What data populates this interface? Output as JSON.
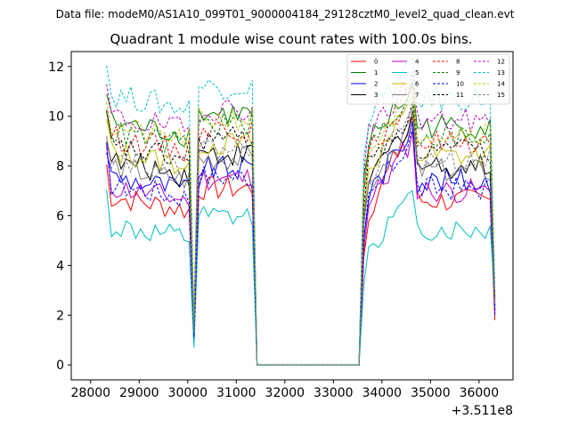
{
  "figure": {
    "suptitle": "Data file: modeM0/AS1A10_099T01_9000004184_29128cztM0_level2_quad_clean.evt"
  },
  "chart_data": {
    "type": "line",
    "title": "Quadrant 1 module wise count rates with 100.0s bins.",
    "xlabel": "",
    "ylabel": "",
    "x_offset_label": "+3.511e8",
    "xlim": [
      27600,
      36700
    ],
    "ylim": [
      -0.6,
      12.6
    ],
    "x_ticks": [
      28000,
      29000,
      30000,
      31000,
      32000,
      33000,
      34000,
      35000,
      36000
    ],
    "x_tick_labels": [
      "28000",
      "29000",
      "30000",
      "31000",
      "32000",
      "33000",
      "34000",
      "35000",
      "36000"
    ],
    "y_ticks": [
      0,
      2,
      4,
      6,
      8,
      10,
      12
    ],
    "y_tick_labels": [
      "0",
      "2",
      "4",
      "6",
      "8",
      "10",
      "12"
    ],
    "grid": false,
    "legend_position": "top-right",
    "x": [
      28328,
      28428,
      28528,
      28628,
      28728,
      28828,
      28928,
      29028,
      29128,
      29228,
      29328,
      29428,
      29528,
      29628,
      29728,
      29828,
      29928,
      30028,
      30128,
      30228,
      30328,
      30428,
      30528,
      30628,
      30728,
      30828,
      30928,
      31028,
      31128,
      31228,
      31328,
      31428,
      31528,
      31628,
      31728,
      31828,
      31928,
      32028,
      32128,
      32228,
      32328,
      32428,
      32528,
      32628,
      32728,
      32828,
      32928,
      33028,
      33128,
      33228,
      33328,
      33428,
      33528,
      33628,
      33728,
      33828,
      33928,
      34028,
      34128,
      34228,
      34328,
      34428,
      34528,
      34628,
      34728,
      34828,
      34928,
      35028,
      35128,
      35228,
      35328,
      35428,
      35528,
      35628,
      35728,
      35828,
      35928,
      36028,
      36128,
      36228,
      36328
    ],
    "legend_labels": [
      "0",
      "1",
      "2",
      "3",
      "4",
      "5",
      "6",
      "7",
      "8",
      "9",
      "10",
      "11",
      "12",
      "13",
      "14",
      "15"
    ],
    "series": [
      {
        "name": "0",
        "color": "#ff0000",
        "dash": "solid",
        "level": 6.8,
        "gap_dip": 1.2,
        "end_level": 1.8,
        "peak": 9.6
      },
      {
        "name": "1",
        "color": "#008000",
        "dash": "solid",
        "level": 9.8,
        "gap_dip": 1.6,
        "end_level": 2.2,
        "peak": 11.0
      },
      {
        "name": "2",
        "color": "#0000ff",
        "dash": "solid",
        "level": 7.6,
        "gap_dip": 1.0,
        "end_level": 2.0,
        "peak": 9.4
      },
      {
        "name": "3",
        "color": "#000000",
        "dash": "solid",
        "level": 8.2,
        "gap_dip": 1.3,
        "end_level": 2.4,
        "peak": 9.8
      },
      {
        "name": "4",
        "color": "#bf00bf",
        "dash": "solid",
        "level": 7.2,
        "gap_dip": 1.1,
        "end_level": 2.1,
        "peak": 9.0
      },
      {
        "name": "5",
        "color": "#00bfbf",
        "dash": "solid",
        "level": 5.6,
        "gap_dip": 0.7,
        "end_level": 2.6,
        "peak": 6.6
      },
      {
        "name": "6",
        "color": "#bfbf00",
        "dash": "solid",
        "level": 8.6,
        "gap_dip": 1.4,
        "end_level": 2.5,
        "peak": 10.4
      },
      {
        "name": "7",
        "color": "#808080",
        "dash": "solid",
        "level": 8.0,
        "gap_dip": 1.2,
        "end_level": 2.3,
        "peak": 9.7
      },
      {
        "name": "8",
        "color": "#ff0000",
        "dash": "dashed",
        "level": 9.2,
        "gap_dip": 1.5,
        "end_level": 2.7,
        "peak": 10.8
      },
      {
        "name": "9",
        "color": "#008000",
        "dash": "dashed",
        "level": 9.4,
        "gap_dip": 1.6,
        "end_level": 2.8,
        "peak": 10.9
      },
      {
        "name": "10",
        "color": "#0000ff",
        "dash": "dashed",
        "level": 7.3,
        "gap_dip": 1.1,
        "end_level": 2.2,
        "peak": 9.1
      },
      {
        "name": "11",
        "color": "#000000",
        "dash": "dashed",
        "level": 8.8,
        "gap_dip": 1.4,
        "end_level": 2.6,
        "peak": 10.2
      },
      {
        "name": "12",
        "color": "#bf00bf",
        "dash": "dashed",
        "level": 10.0,
        "gap_dip": 1.7,
        "end_level": 2.9,
        "peak": 11.4
      },
      {
        "name": "13",
        "color": "#00bfbf",
        "dash": "dashed",
        "level": 10.9,
        "gap_dip": 1.9,
        "end_level": 3.0,
        "peak": 11.9
      },
      {
        "name": "14",
        "color": "#bfbf00",
        "dash": "dashed",
        "level": 9.6,
        "gap_dip": 1.5,
        "end_level": 2.8,
        "peak": 11.0
      },
      {
        "name": "15",
        "color": "#808080",
        "dash": "dashed",
        "level": 8.4,
        "gap_dip": 1.3,
        "end_level": 2.5,
        "peak": 9.9
      }
    ]
  }
}
